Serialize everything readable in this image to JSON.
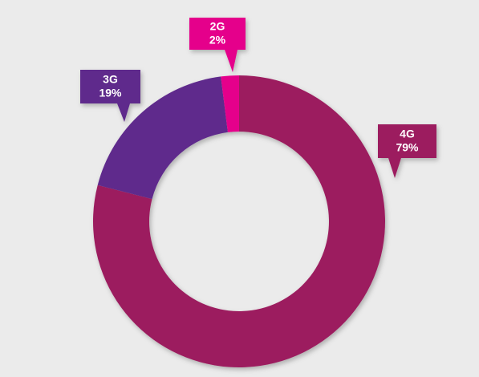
{
  "chart_data": {
    "type": "donut",
    "categories": [
      "4G",
      "3G",
      "2G"
    ],
    "values": [
      79,
      19,
      2
    ],
    "value_labels": [
      "79%",
      "19%",
      "2%"
    ],
    "colors": [
      "#9c1f5e",
      "#5e2a8c",
      "#e5068b"
    ]
  }
}
